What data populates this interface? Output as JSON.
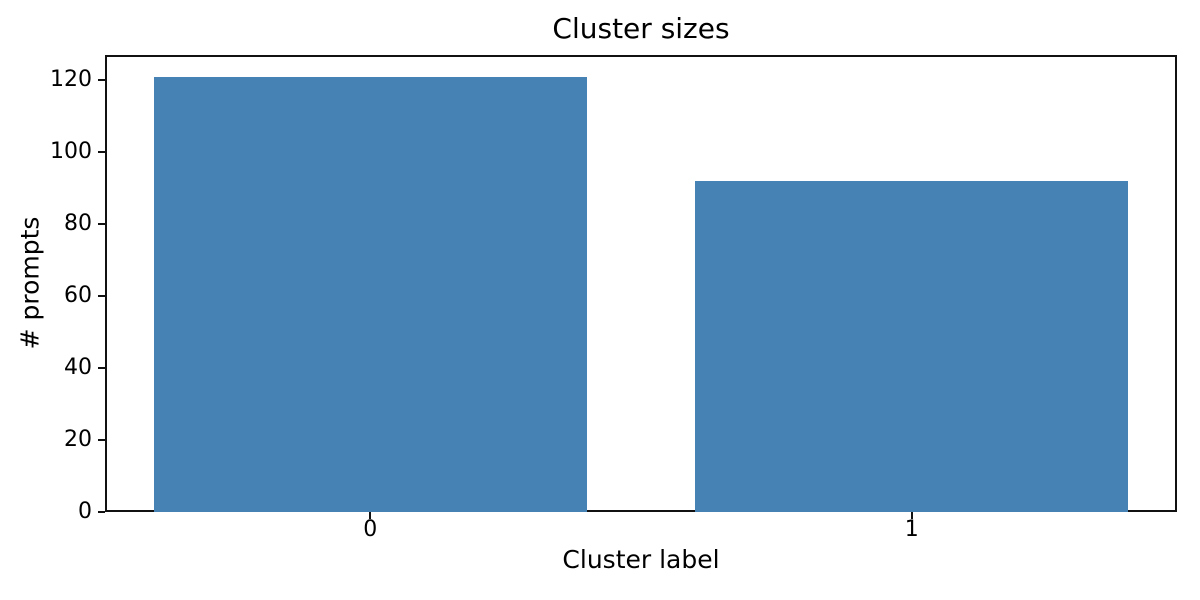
{
  "chart_data": {
    "type": "bar",
    "title": "Cluster sizes",
    "xlabel": "Cluster label",
    "ylabel": "# prompts",
    "categories": [
      "0",
      "1"
    ],
    "values": [
      121,
      92
    ],
    "yticks": [
      0,
      20,
      40,
      60,
      80,
      100,
      120
    ],
    "ylim": [
      0,
      127
    ],
    "xlim": [
      -0.49,
      1.49
    ],
    "bar_width": 0.8,
    "bar_color": "#4682b4",
    "grid": false,
    "legend": "none"
  }
}
